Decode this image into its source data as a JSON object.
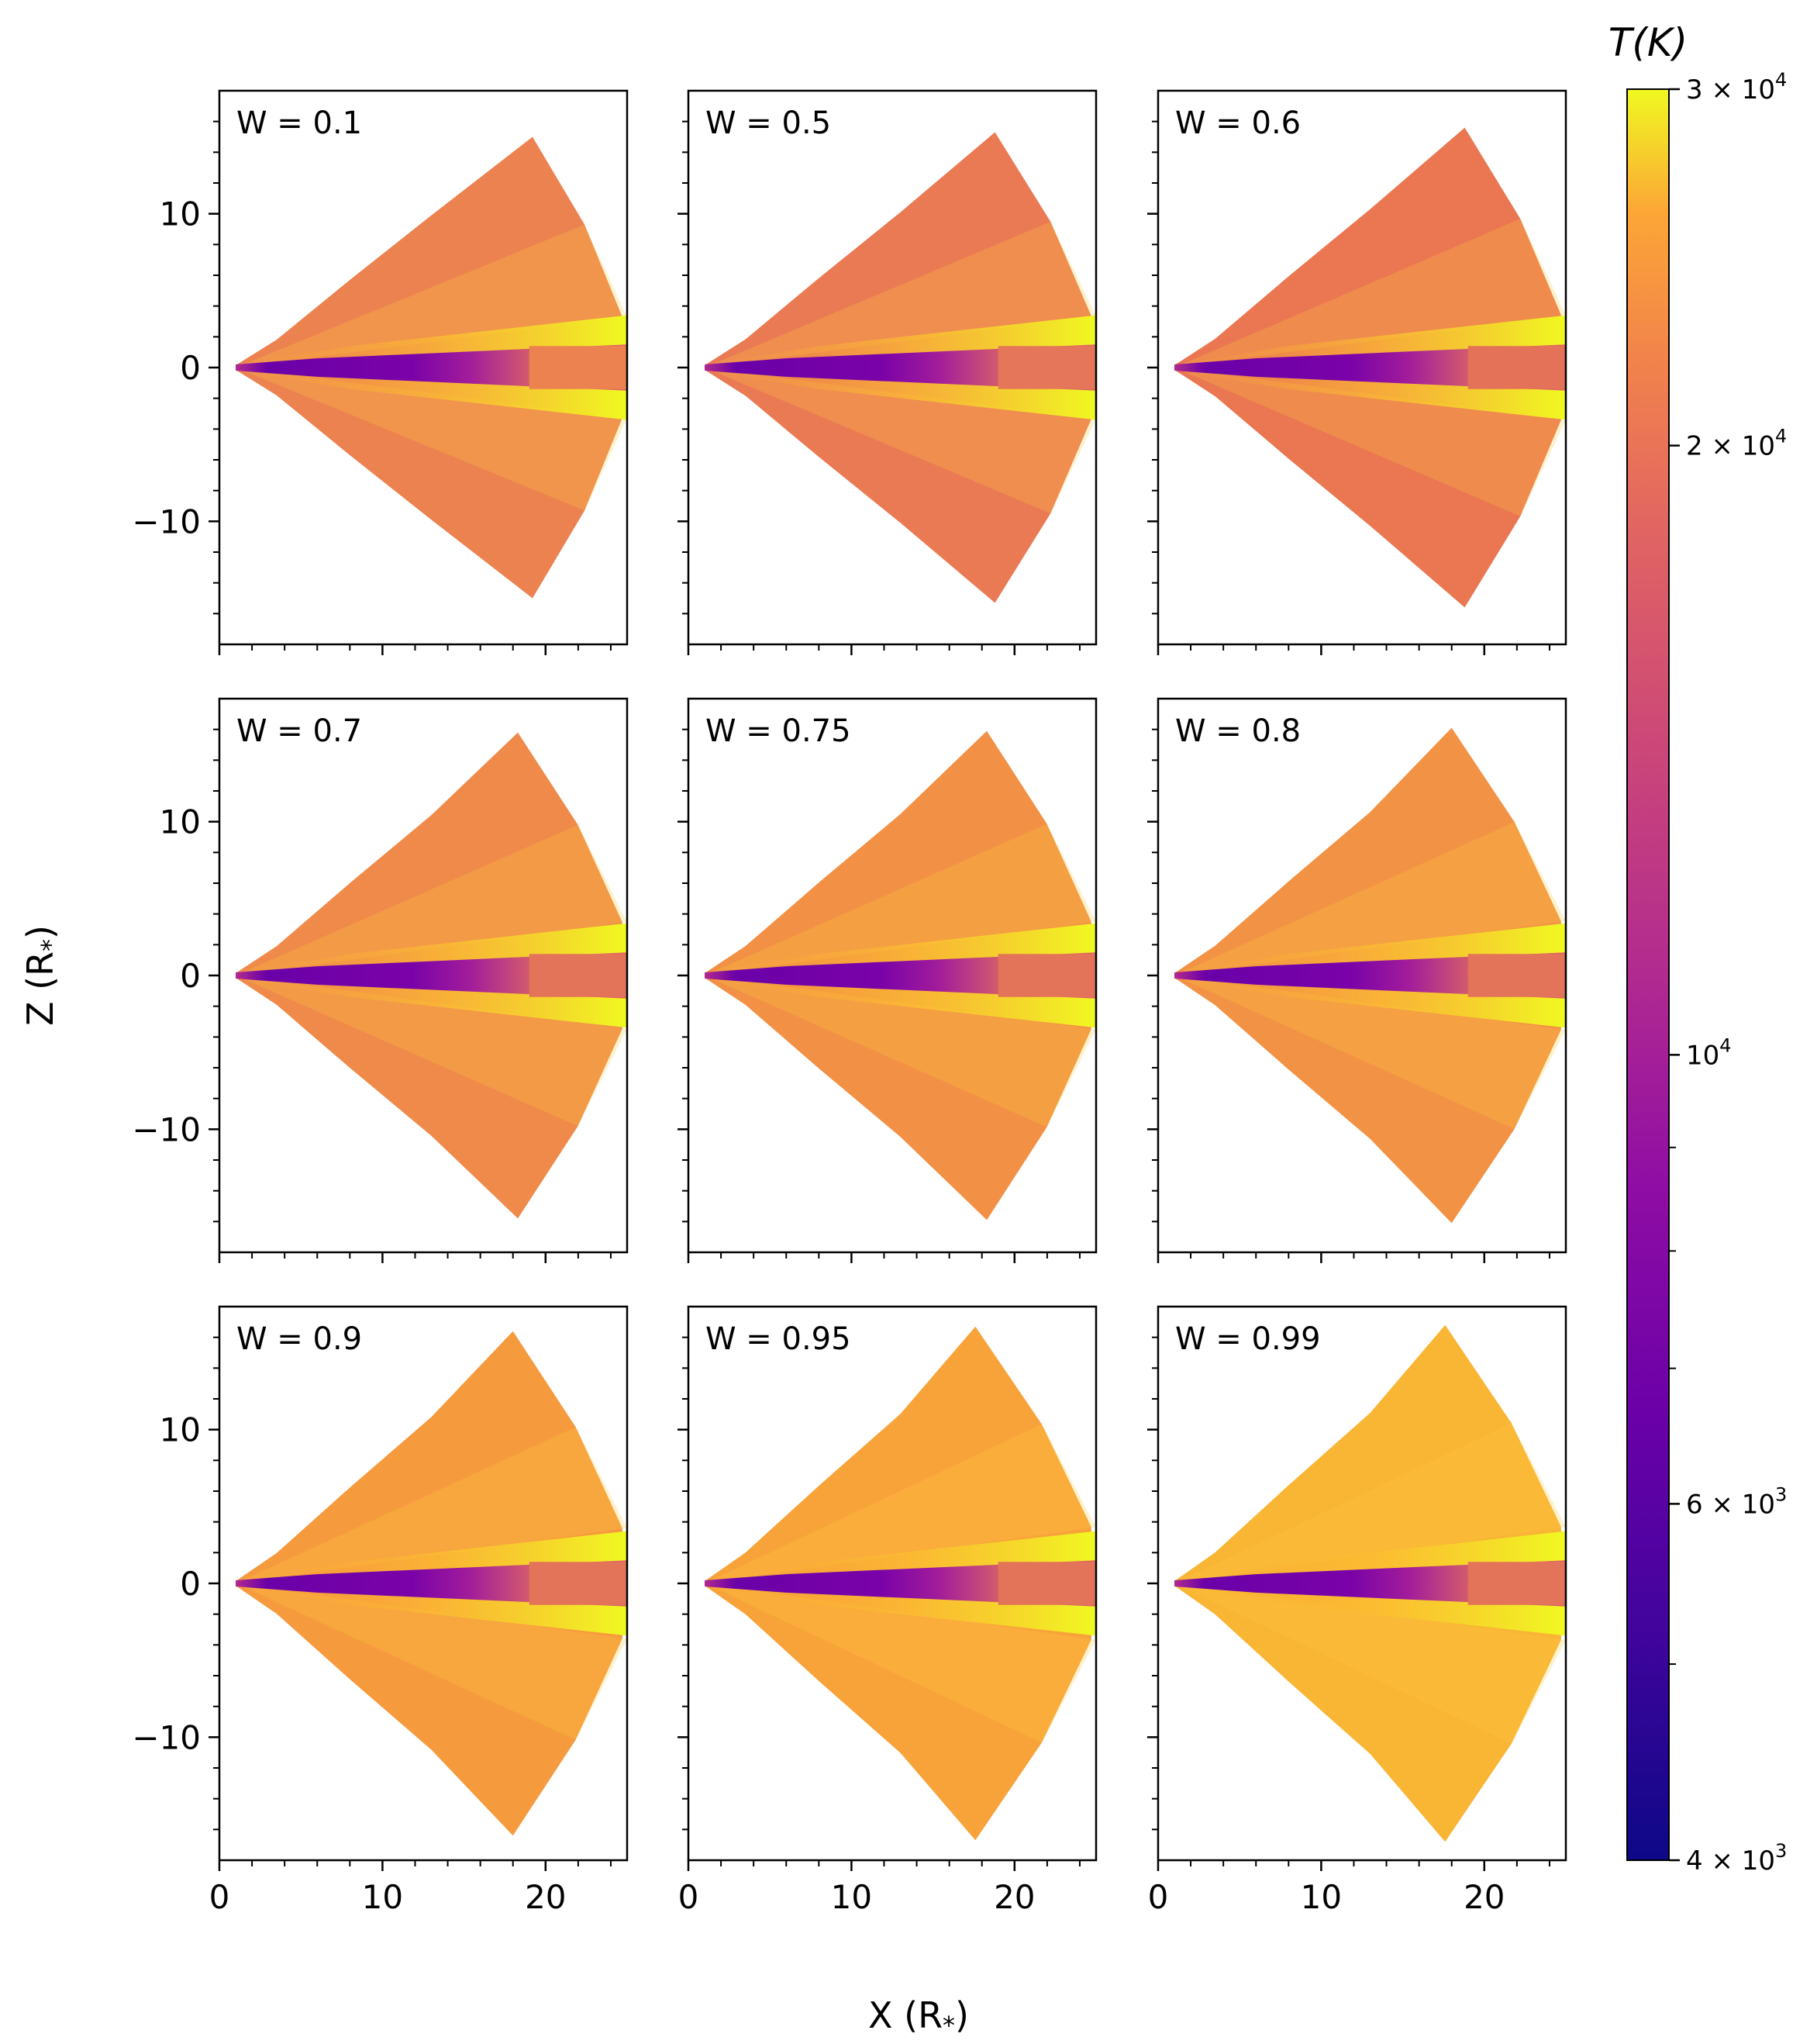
{
  "figure": {
    "xlabel": "X (R",
    "xlabel_sub": "*",
    "xlabel_close": ")",
    "ylabel": "Z (R",
    "ylabel_sub": "*",
    "ylabel_close": ")"
  },
  "chart_data": {
    "type": "heatmap",
    "description_axes": "3x3 grid of panels sharing axes",
    "xlim": [
      0,
      25
    ],
    "ylim": [
      -18,
      18
    ],
    "xticks": [
      0,
      10,
      20
    ],
    "yticks": [
      10,
      0,
      -10
    ],
    "ytick_labels": [
      "10",
      "0",
      "−10"
    ],
    "xtick_labels": [
      "0",
      "10",
      "20"
    ],
    "panels": [
      {
        "label": "W = 0.1",
        "disk_color": "#ec8250",
        "band_color": "#ec8250",
        "tip_x": 19.2,
        "tip_z": 15.0
      },
      {
        "label": "W = 0.5",
        "disk_color": "#ea7a54",
        "band_color": "#e5765a",
        "tip_x": 18.8,
        "tip_z": 15.3
      },
      {
        "label": "W = 0.6",
        "disk_color": "#ea7752",
        "band_color": "#e47258",
        "tip_x": 18.8,
        "tip_z": 15.6
      },
      {
        "label": "W = 0.7",
        "disk_color": "#ef8a4a",
        "band_color": "#e3745a",
        "tip_x": 18.3,
        "tip_z": 15.8
      },
      {
        "label": "W = 0.75",
        "disk_color": "#f29045",
        "band_color": "#e3745a",
        "tip_x": 18.3,
        "tip_z": 15.9
      },
      {
        "label": "W = 0.8",
        "disk_color": "#f29245",
        "band_color": "#e3745a",
        "tip_x": 18.0,
        "tip_z": 16.1
      },
      {
        "label": "W = 0.9",
        "disk_color": "#f69a3e",
        "band_color": "#e3745a",
        "tip_x": 18.0,
        "tip_z": 16.4
      },
      {
        "label": "W = 0.95",
        "disk_color": "#f8a33a",
        "band_color": "#e3745a",
        "tip_x": 17.6,
        "tip_z": 16.7
      },
      {
        "label": "W = 0.99",
        "disk_color": "#f9b534",
        "band_color": "#e3745a",
        "tip_x": 17.6,
        "tip_z": 16.8
      }
    ],
    "colorbar": {
      "label": "T(K)",
      "scale": "log",
      "range": [
        4000,
        30000
      ],
      "colormap": "plasma",
      "major_ticks": [
        {
          "value": 30000,
          "label": "3 × 10",
          "exp": "4"
        },
        {
          "value": 20000,
          "label": "2 × 10",
          "exp": "4"
        },
        {
          "value": 10000,
          "label": "10",
          "exp": "4"
        },
        {
          "value": 6000,
          "label": "6 × 10",
          "exp": "3"
        },
        {
          "value": 4000,
          "label": "4 × 10",
          "exp": "3"
        }
      ],
      "minor_ticks": [
        5000,
        7000,
        8000,
        9000
      ]
    }
  }
}
